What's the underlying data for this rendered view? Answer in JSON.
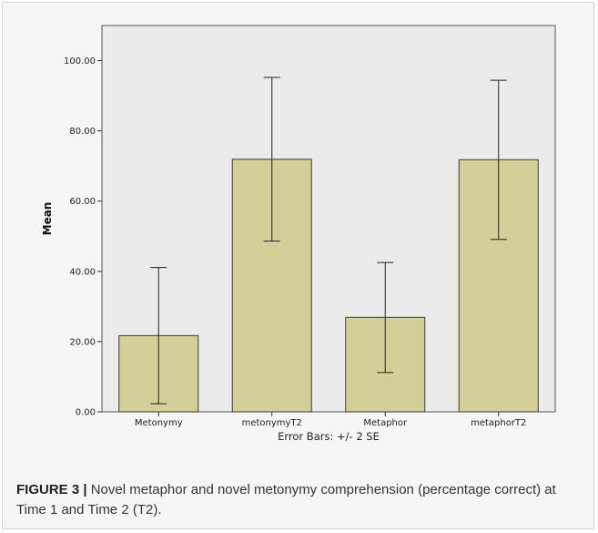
{
  "chart_data": {
    "type": "bar",
    "categories": [
      "Metonymy",
      "metonymyT2",
      "Metaphor",
      "metaphorT2"
    ],
    "values": [
      21.7,
      71.9,
      26.9,
      71.8
    ],
    "error_bars": {
      "upper": [
        41.1,
        95.2,
        42.5,
        94.4
      ],
      "lower": [
        2.3,
        48.6,
        11.2,
        49.1
      ]
    },
    "ylabel": "Mean",
    "ylim": [
      0,
      110
    ],
    "yticks": [
      "0.00",
      "20.00",
      "40.00",
      "60.00",
      "80.00",
      "100.00"
    ],
    "note": "Error Bars: +/- 2 SE",
    "grid": false,
    "colors": {
      "bar_fill": "#d4cf98",
      "bar_stroke": "#3a3a3a",
      "plot_background": "#ebebeb",
      "error_bar": "#222222"
    }
  },
  "caption": {
    "label": "FIGURE 3 |",
    "text": " Novel metaphor and novel metonymy comprehension (percentage correct) at Time 1 and Time 2 (T2)."
  }
}
